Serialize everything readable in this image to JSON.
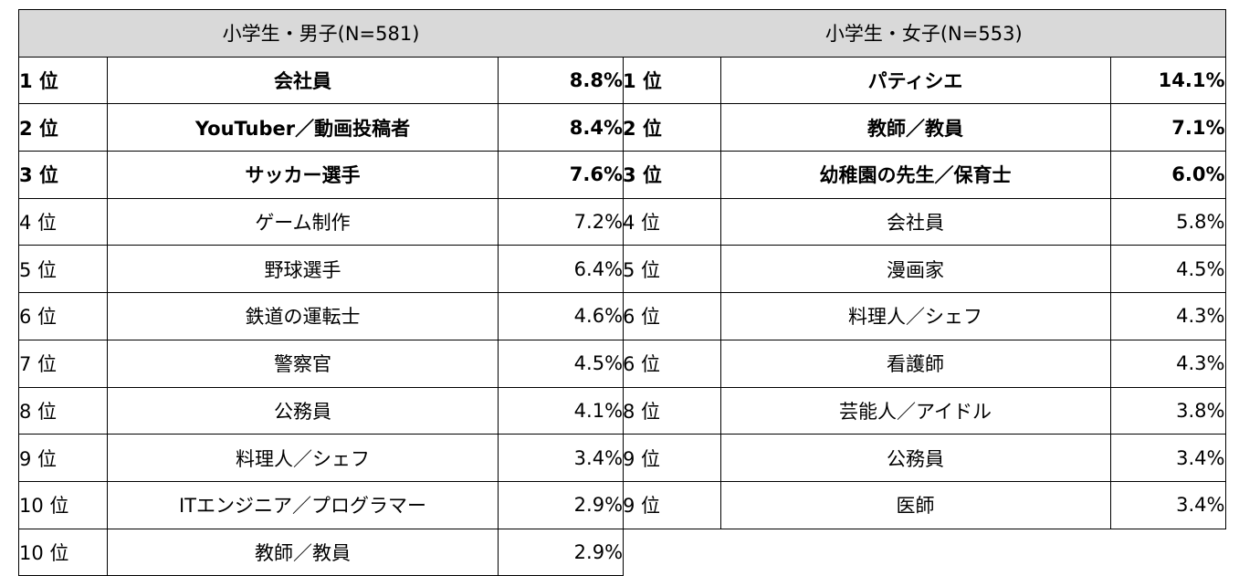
{
  "boys": {
    "header": "小学生・男子(N=581)",
    "rows": [
      {
        "rank": "1 位",
        "job": "会社員",
        "pct": "8.8%"
      },
      {
        "rank": "2 位",
        "job": "YouTuber／動画投稿者",
        "pct": "8.4%"
      },
      {
        "rank": "3 位",
        "job": "サッカー選手",
        "pct": "7.6%"
      },
      {
        "rank": "4 位",
        "job": "ゲーム制作",
        "pct": "7.2%"
      },
      {
        "rank": "5 位",
        "job": "野球選手",
        "pct": "6.4%"
      },
      {
        "rank": "6 位",
        "job": "鉄道の運転士",
        "pct": "4.6%"
      },
      {
        "rank": "7 位",
        "job": "警察官",
        "pct": "4.5%"
      },
      {
        "rank": "8 位",
        "job": "公務員",
        "pct": "4.1%"
      },
      {
        "rank": "9 位",
        "job": "料理人／シェフ",
        "pct": "3.4%"
      },
      {
        "rank": "10 位",
        "job": "ITエンジニア／プログラマー",
        "pct": "2.9%"
      },
      {
        "rank": "10 位",
        "job": "教師／教員",
        "pct": "2.9%"
      }
    ]
  },
  "girls": {
    "header": "小学生・女子(N=553)",
    "rows": [
      {
        "rank": "1 位",
        "job": "パティシエ",
        "pct": "14.1%"
      },
      {
        "rank": "2 位",
        "job": "教師／教員",
        "pct": "7.1%"
      },
      {
        "rank": "3 位",
        "job": "幼稚園の先生／保育士",
        "pct": "6.0%"
      },
      {
        "rank": "4 位",
        "job": "会社員",
        "pct": "5.8%"
      },
      {
        "rank": "5 位",
        "job": "漫画家",
        "pct": "4.5%"
      },
      {
        "rank": "6 位",
        "job": "料理人／シェフ",
        "pct": "4.3%"
      },
      {
        "rank": "6 位",
        "job": "看護師",
        "pct": "4.3%"
      },
      {
        "rank": "8 位",
        "job": "芸能人／アイドル",
        "pct": "3.8%"
      },
      {
        "rank": "9 位",
        "job": "公務員",
        "pct": "3.4%"
      },
      {
        "rank": "9 位",
        "job": "医師",
        "pct": "3.4%"
      }
    ]
  }
}
